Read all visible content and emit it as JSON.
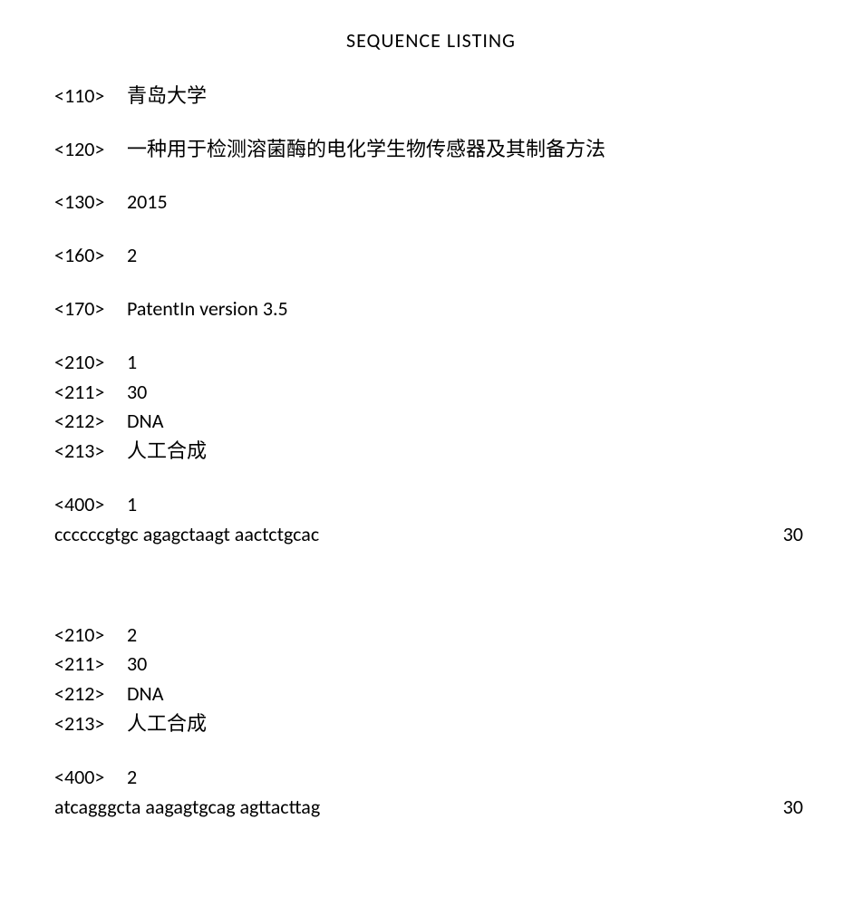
{
  "title": "SEQUENCE LISTING",
  "header": {
    "tag110": "<110>",
    "val110": "青岛大学",
    "tag120": "<120>",
    "val120": "一种用于检测溶菌酶的电化学生物传感器及其制备方法",
    "tag130": "<130>",
    "val130": "2015",
    "tag160": "<160>",
    "val160": "2",
    "tag170": "<170>",
    "val170": "PatentIn version 3.5"
  },
  "seq1": {
    "tag210": "<210>",
    "val210": "1",
    "tag211": "<211>",
    "val211": "30",
    "tag212": "<212>",
    "val212": "DNA",
    "tag213": "<213>",
    "val213": "人工合成",
    "tag400": "<400>",
    "val400": "1",
    "sequence": "ccccccgtgc agagctaagt aactctgcac",
    "length": "30"
  },
  "seq2": {
    "tag210": "<210>",
    "val210": "2",
    "tag211": "<211>",
    "val211": "30",
    "tag212": "<212>",
    "val212": "DNA",
    "tag213": "<213>",
    "val213": "人工合成",
    "tag400": "<400>",
    "val400": "2",
    "sequence": "atcagggcta aagagtgcag agttacttag",
    "length": "30"
  }
}
